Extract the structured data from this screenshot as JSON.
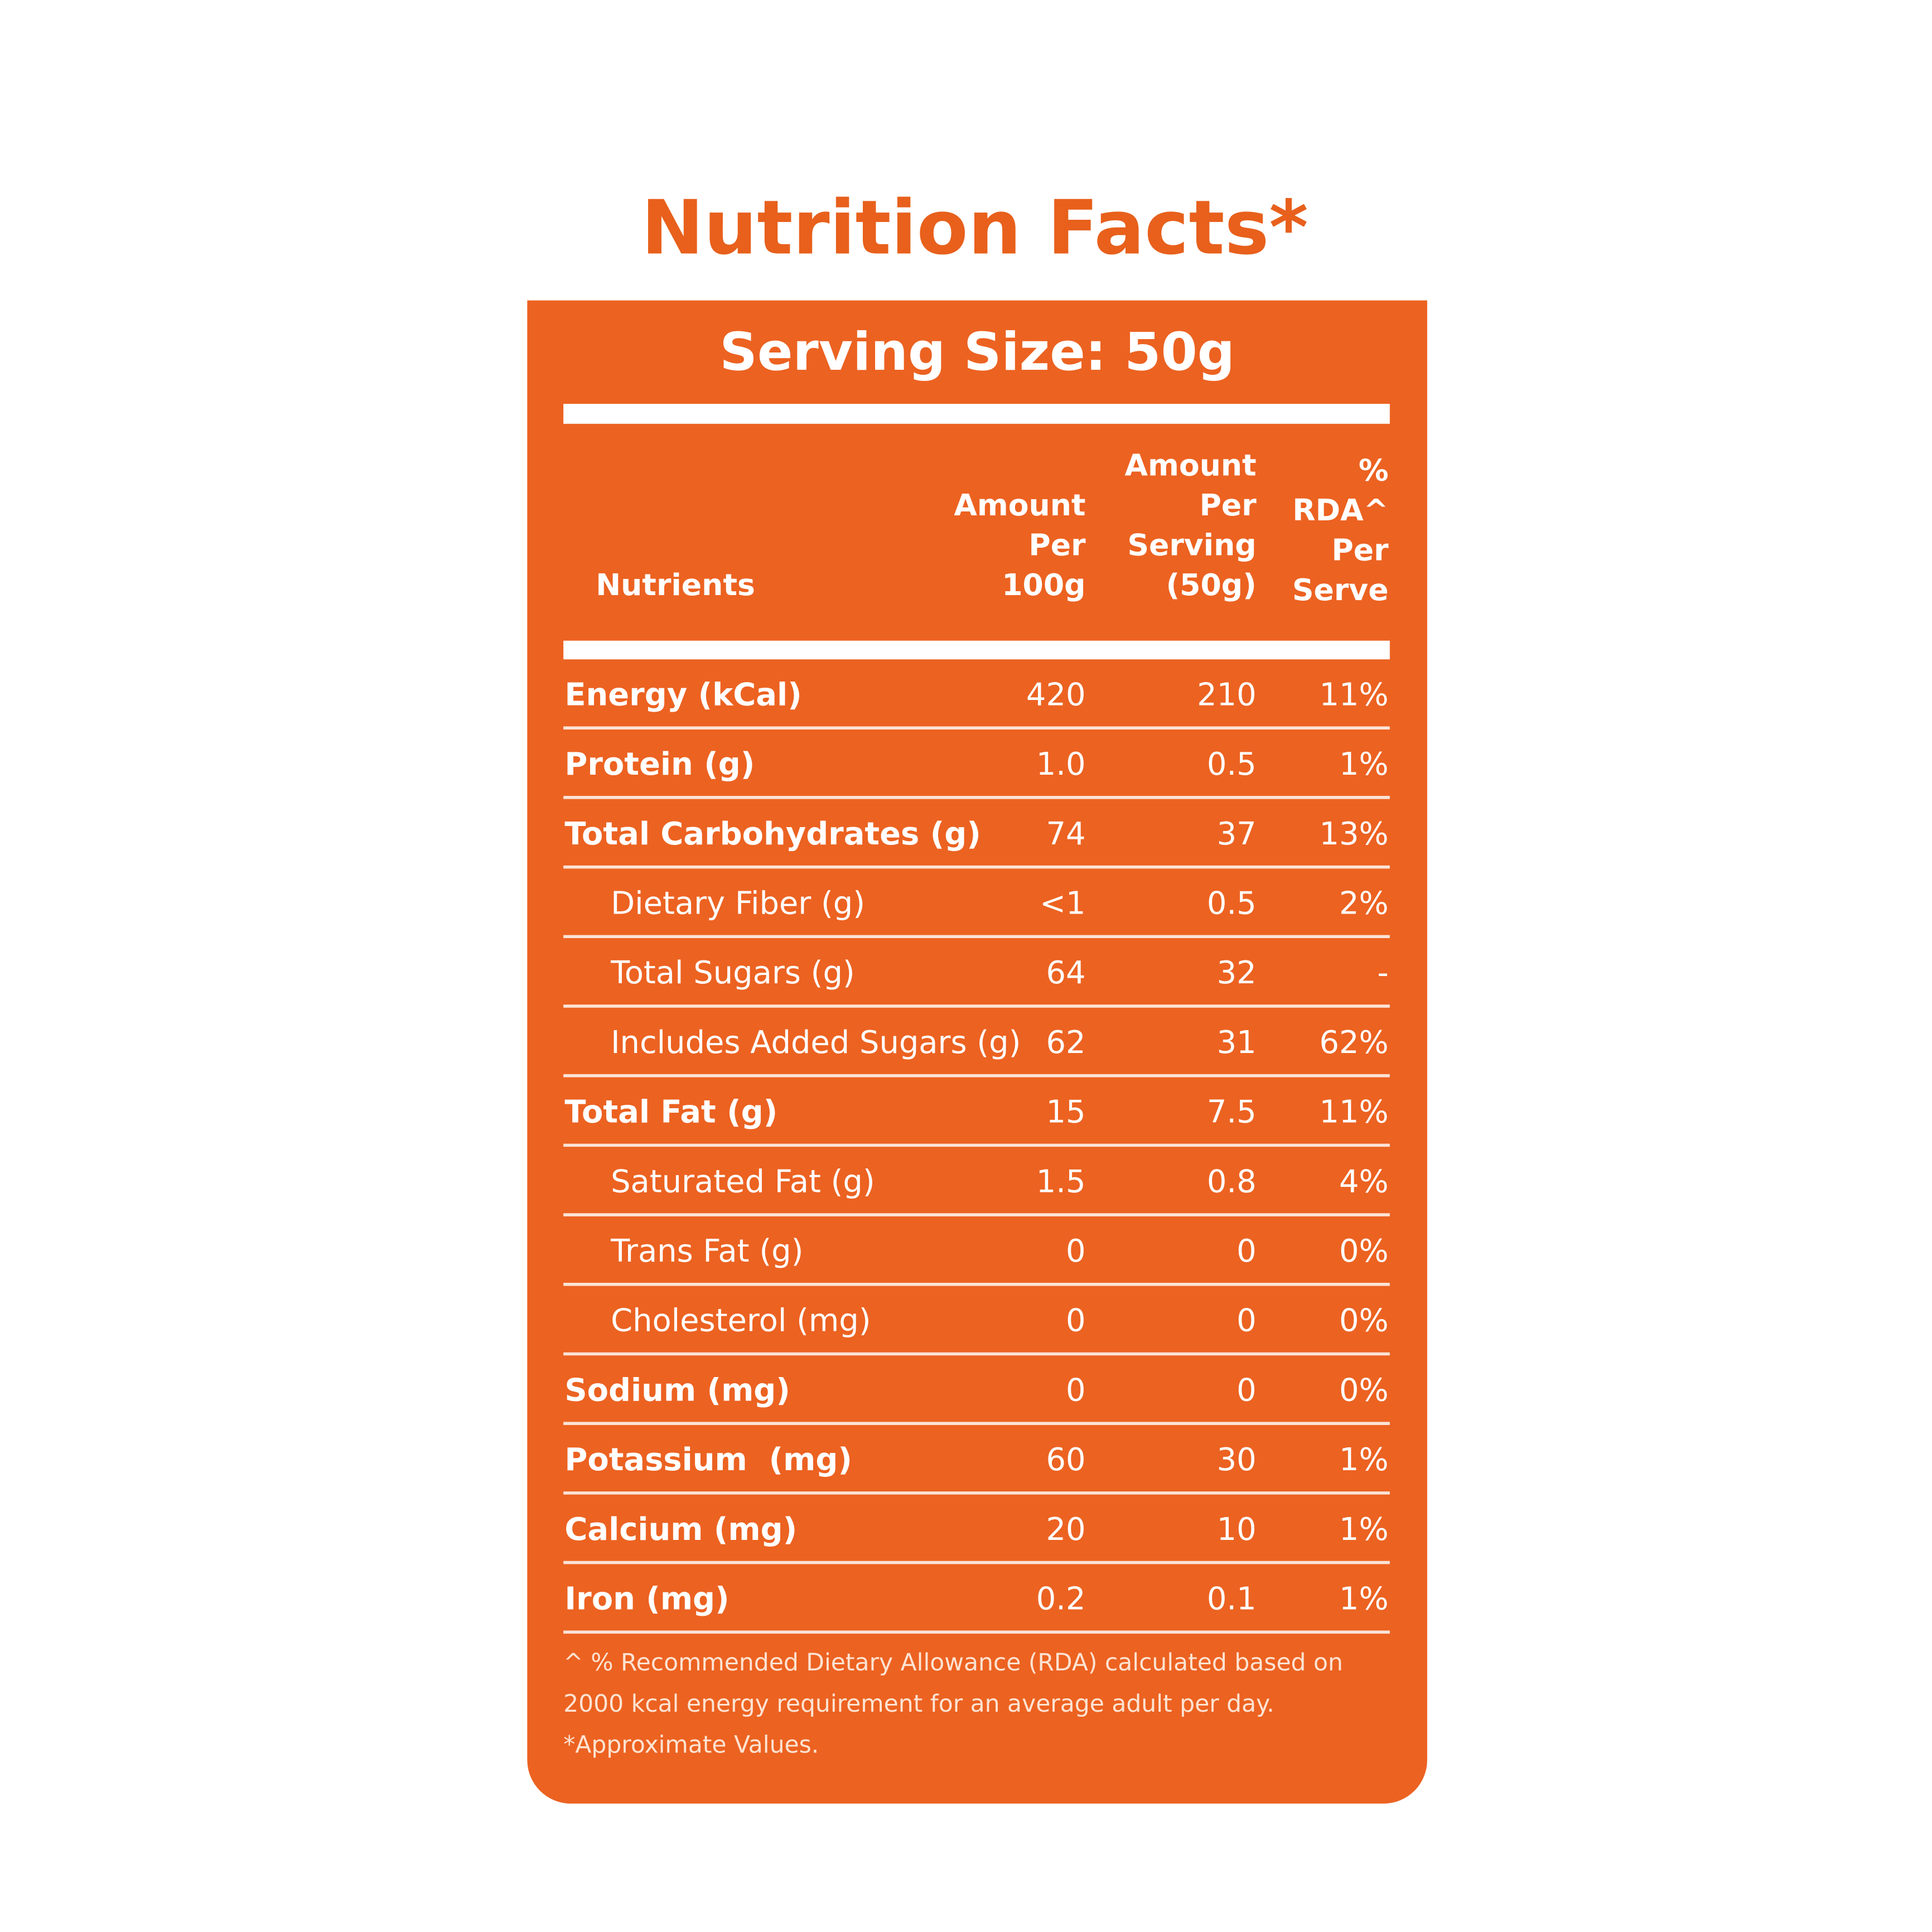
{
  "title": "Nutrition Facts*",
  "serving_size": "Serving Size: 50g",
  "table": {
    "headers": [
      [
        "Nutrients"
      ],
      [
        "Amount",
        "Per",
        "100g"
      ],
      [
        "Amount",
        "Per",
        "Serving",
        "(50g)"
      ],
      [
        "%",
        "RDA^",
        "Per",
        "Serve"
      ]
    ],
    "rows": [
      {
        "name": "Energy (kCal)",
        "per_100g": "420",
        "per_serving": "210",
        "rda": "11%"
      },
      {
        "name": "Protein (g)",
        "per_100g": "1.0",
        "per_serving": "0.5",
        "rda": "1%"
      },
      {
        "name": "Total Carbohydrates (g)",
        "per_100g": "74",
        "per_serving": "37",
        "rda": "13%",
        "subrows": [
          {
            "name": "Dietary Fiber (g)",
            "per_100g": "<1",
            "per_serving": "0.5",
            "rda": "2%"
          },
          {
            "name": "Total Sugars (g)",
            "per_100g": "64",
            "per_serving": "32",
            "rda": "-"
          },
          {
            "name": "Includes Added Sugars (g)",
            "per_100g": "62",
            "per_serving": "31",
            "rda": "62%"
          }
        ]
      },
      {
        "name": "Total Fat (g)",
        "per_100g": "15",
        "per_serving": "7.5",
        "rda": "11%",
        "subrows": [
          {
            "name": "Saturated Fat (g)",
            "per_100g": "1.5",
            "per_serving": "0.8",
            "rda": "4%"
          },
          {
            "name": "Trans Fat (g)",
            "per_100g": "0",
            "per_serving": "0",
            "rda": "0%"
          },
          {
            "name": "Cholesterol (mg)",
            "per_100g": "0",
            "per_serving": "0",
            "rda": "0%"
          }
        ]
      },
      {
        "name": "Sodium (mg)",
        "per_100g": "0",
        "per_serving": "0",
        "rda": "0%"
      },
      {
        "name": "Potassium  (mg)",
        "per_100g": "60",
        "per_serving": "30",
        "rda": "1%"
      },
      {
        "name": "Calcium (mg)",
        "per_100g": "20",
        "per_serving": "10",
        "rda": "1%"
      },
      {
        "name": "Iron (mg)",
        "per_100g": "0.2",
        "per_serving": "0.1",
        "rda": "1%"
      }
    ]
  },
  "footnotes": [
    "^ % Recommended Dietary Allowance (RDA) calculated based on",
    "2000 kcal energy requirement for an average adult per day.",
    "*Approximate Values."
  ]
}
